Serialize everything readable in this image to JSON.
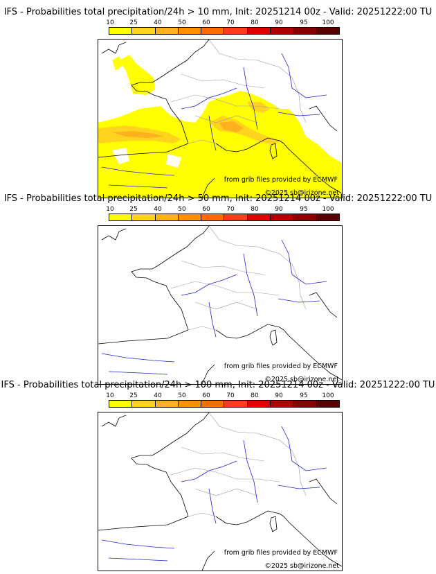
{
  "colorbar": {
    "ticks": [
      "10",
      "25",
      "40",
      "50",
      "60",
      "70",
      "80",
      "90",
      "95",
      "100"
    ],
    "colors": [
      "#ffff00",
      "#ffd31e",
      "#ffb01e",
      "#ff9000",
      "#ff6c00",
      "#ff3c1e",
      "#e00000",
      "#b00000",
      "#8a0000",
      "#5a0000"
    ]
  },
  "credits": {
    "source": "from grib files provided by ECMWF",
    "copyright": "©2025 sb@irizone.net"
  },
  "panels": [
    {
      "title": "IFS - Probabilities total precipitation/24h > 10 mm, Init: 20251214 00z - Valid: 20251222:00 TU",
      "threshold_mm": 10,
      "has_precip": true
    },
    {
      "title": "IFS - Probabilities total precipitation/24h > 50 mm, Init: 20251214 00z - Valid: 20251222:00 TU",
      "threshold_mm": 50,
      "has_precip": false
    },
    {
      "title": "IFS - Probabilities total precipitation/24h > 100 mm, Init: 20251214 00z - Valid: 20251222:00 TU",
      "threshold_mm": 100,
      "has_precip": false
    }
  ]
}
